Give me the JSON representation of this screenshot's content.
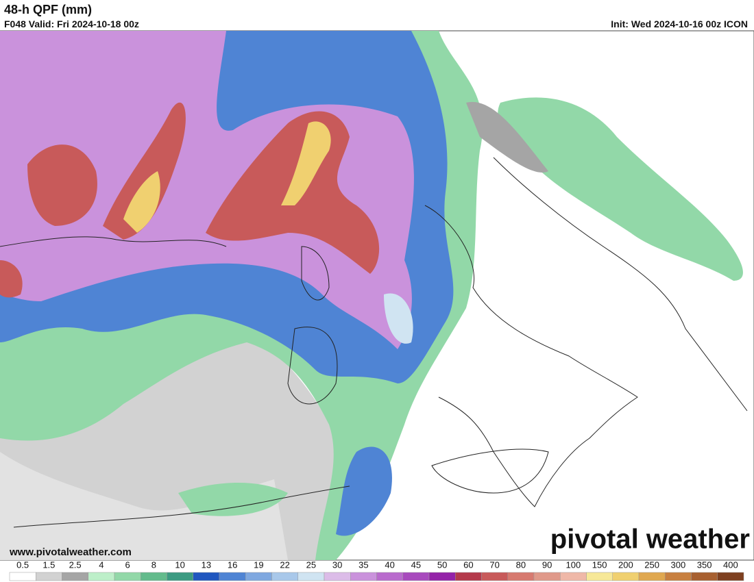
{
  "header": {
    "title": "48-h QPF (mm)",
    "valid": "F048 Valid: Fri 2024-10-18 00z",
    "init": "Init: Wed 2024-10-16 00z ICON"
  },
  "watermark": {
    "url": "www.pivotalweather.com",
    "brand": "pivotal weather"
  },
  "colorbar": {
    "labels": [
      0.5,
      1.5,
      2.5,
      4,
      6,
      8,
      10,
      13,
      16,
      19,
      22,
      25,
      30,
      35,
      40,
      45,
      50,
      60,
      70,
      80,
      90,
      100,
      150,
      200,
      250,
      300,
      350,
      400
    ],
    "colors": [
      "#ffffff",
      "#d2d2d2",
      "#a5a5a5",
      "#bdefc9",
      "#92d8a8",
      "#63bb8c",
      "#3c9b82",
      "#2057bf",
      "#4f84d4",
      "#7fa8e0",
      "#a9c8ea",
      "#d0e4f2",
      "#dcbce8",
      "#ca92dc",
      "#b96bcd",
      "#a84abd",
      "#9423a8",
      "#b43a4c",
      "#c85a5a",
      "#d77a70",
      "#e0998a",
      "#efb8a8",
      "#f7e898",
      "#f0d070",
      "#e0a850",
      "#c88040",
      "#a86030",
      "#7e4020"
    ]
  }
}
